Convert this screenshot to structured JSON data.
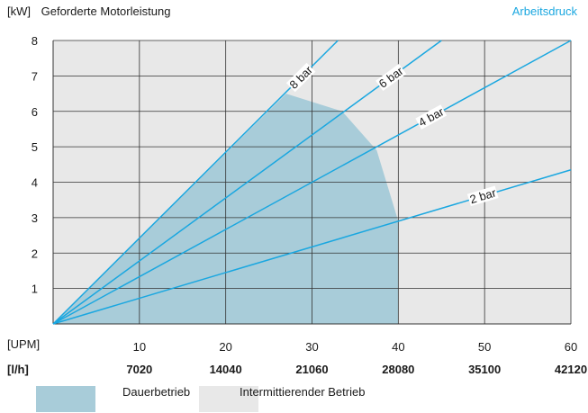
{
  "chart_data": {
    "type": "line",
    "y_unit": "[kW]",
    "title": "Geforderte Motorleistung",
    "series_title": "Arbeitsdruck",
    "xlabel_rpm": "[UPM]",
    "xlabel_flow": "[l/h]",
    "x_ticks": [
      10,
      20,
      30,
      40,
      50,
      60
    ],
    "x_flow_ticks": [
      "7020",
      "14040",
      "21060",
      "28080",
      "35100",
      "42120"
    ],
    "xlim": [
      0,
      60
    ],
    "y_ticks": [
      1,
      2,
      3,
      4,
      5,
      6,
      7,
      8
    ],
    "ylim": [
      0,
      8
    ],
    "grid": true,
    "series": [
      {
        "name": "2 bar",
        "x": [
          0,
          60
        ],
        "y": [
          0,
          4.35
        ]
      },
      {
        "name": "4 bar",
        "x": [
          0,
          60
        ],
        "y": [
          0,
          8.0
        ]
      },
      {
        "name": "6 bar",
        "x": [
          0,
          45
        ],
        "y": [
          0,
          8.0
        ]
      },
      {
        "name": "8 bar",
        "x": [
          0,
          33
        ],
        "y": [
          0,
          8.0
        ]
      }
    ],
    "continuous_region": {
      "name": "Dauerbetrieb",
      "x": [
        0,
        27,
        33.5,
        37.5,
        40,
        40
      ],
      "y": [
        0,
        6.5,
        6.0,
        4.9,
        2.9,
        0
      ]
    },
    "legend": [
      {
        "label": "Dauerbetrieb",
        "color": "#a8ccd9"
      },
      {
        "label": "Intermittierender Betrieb",
        "color": "#e8e8e8"
      }
    ],
    "colors": {
      "line": "#1aa7e0",
      "continuous": "#a8ccd9",
      "intermittent": "#e8e8e8",
      "grid": "#333333"
    }
  }
}
